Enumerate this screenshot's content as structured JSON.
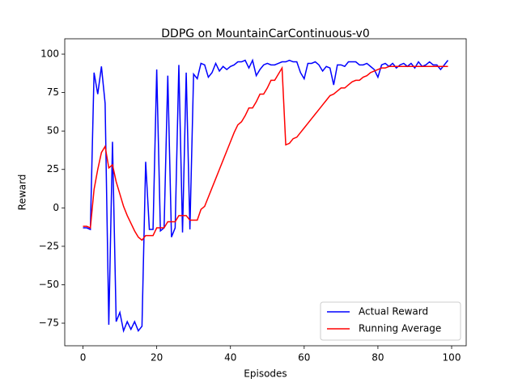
{
  "chart_data": {
    "type": "line",
    "title": "DDPG on MountainCarContinuous-v0",
    "xlabel": "Episodes",
    "ylabel": "Reward",
    "x": [
      0,
      1,
      2,
      3,
      4,
      5,
      6,
      7,
      8,
      9,
      10,
      11,
      12,
      13,
      14,
      15,
      16,
      17,
      18,
      19,
      20,
      21,
      22,
      23,
      24,
      25,
      26,
      27,
      28,
      29,
      30,
      31,
      32,
      33,
      34,
      35,
      36,
      37,
      38,
      39,
      40,
      41,
      42,
      43,
      44,
      45,
      46,
      47,
      48,
      49,
      50,
      51,
      52,
      53,
      54,
      55,
      56,
      57,
      58,
      59,
      60,
      61,
      62,
      63,
      64,
      65,
      66,
      67,
      68,
      69,
      70,
      71,
      72,
      73,
      74,
      75,
      76,
      77,
      78,
      79,
      80,
      81,
      82,
      83,
      84,
      85,
      86,
      87,
      88,
      89,
      90,
      91,
      92,
      93,
      94,
      95,
      96,
      97,
      98,
      99
    ],
    "series": [
      {
        "name": "Actual Reward",
        "color": "#0000ff",
        "values": [
          -13,
          -13,
          -14,
          88,
          74,
          92,
          68,
          -76,
          43,
          -74,
          -68,
          -80,
          -74,
          -79,
          -74,
          -80,
          -77,
          30,
          -14,
          -14,
          90,
          -15,
          -13,
          86,
          -19,
          -13,
          93,
          -16,
          88,
          -14,
          87,
          84,
          94,
          93,
          85,
          88,
          94,
          89,
          92,
          90,
          92,
          93,
          95,
          95,
          96,
          91,
          96,
          86,
          90,
          93,
          94,
          93,
          93,
          94,
          95,
          95,
          96,
          95,
          95,
          88,
          84,
          94,
          94,
          95,
          93,
          89,
          92,
          91,
          80,
          93,
          93,
          92,
          95,
          95,
          95,
          93,
          93,
          94,
          92,
          90,
          85,
          93,
          94,
          92,
          94,
          91,
          93,
          94,
          92,
          94,
          91,
          95,
          92,
          93,
          95,
          93,
          93,
          90,
          93,
          96
        ]
      },
      {
        "name": "Running Average",
        "color": "#ff0000",
        "values": [
          -12,
          -12,
          -13,
          12,
          25,
          36,
          40,
          26,
          28,
          17,
          9,
          1,
          -5,
          -10,
          -15,
          -19,
          -21,
          -18,
          -18,
          -18,
          -13,
          -13,
          -13,
          -9,
          -9,
          -9,
          -5,
          -5,
          -5,
          -8,
          -8,
          -8,
          -1,
          1,
          7,
          13,
          19,
          25,
          31,
          37,
          43,
          49,
          54,
          56,
          60,
          65,
          65,
          69,
          74,
          74,
          78,
          83,
          83,
          87,
          91,
          41,
          42,
          45,
          46,
          49,
          52,
          55,
          58,
          61,
          64,
          67,
          70,
          73,
          74,
          76,
          78,
          78,
          80,
          82,
          83,
          83,
          85,
          86,
          88,
          89,
          90,
          91,
          91,
          92,
          92,
          92,
          92,
          92,
          92,
          92,
          92,
          92,
          92,
          92,
          92,
          92,
          92,
          92,
          92,
          92
        ]
      }
    ],
    "xlim": [
      -4.95,
      103.95
    ],
    "ylim": [
      -89.7,
      110
    ],
    "xticks": [
      0,
      20,
      40,
      60,
      80,
      100
    ],
    "yticks": [
      {
        "value": -75,
        "label": "−75"
      },
      {
        "value": -50,
        "label": "−50"
      },
      {
        "value": -25,
        "label": "−25"
      },
      0,
      25,
      50,
      75,
      100
    ],
    "legend": "lower right"
  }
}
